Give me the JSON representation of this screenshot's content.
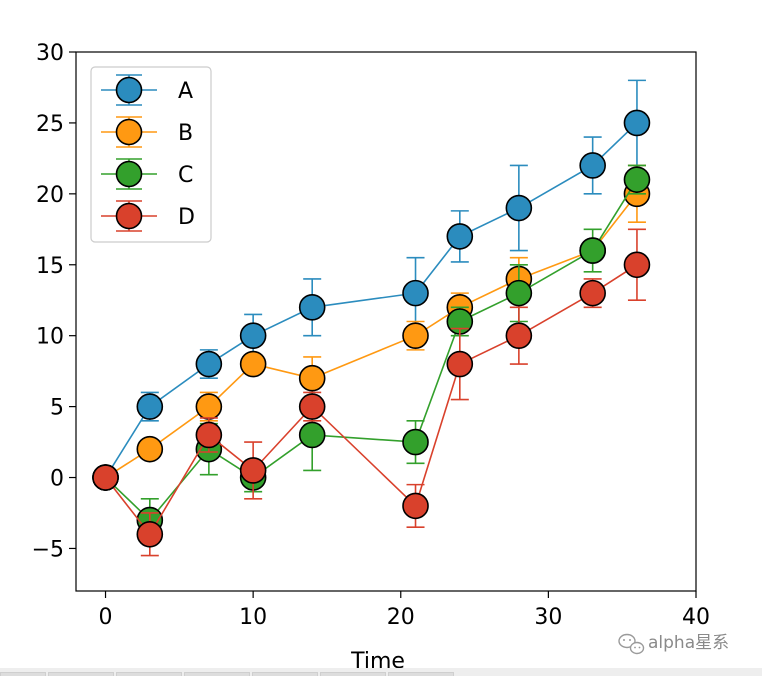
{
  "chart_data": {
    "type": "line",
    "x_label": "Time",
    "xlim": [
      -2,
      40
    ],
    "ylim": [
      -8,
      30
    ],
    "x_ticks": [
      0,
      10,
      20,
      30,
      40
    ],
    "y_ticks": [
      -5,
      0,
      5,
      10,
      15,
      20,
      25,
      30
    ],
    "y_tick_labels": [
      "−5",
      "0",
      "5",
      "10",
      "15",
      "20",
      "25",
      "30"
    ],
    "grid": false,
    "legend_position": "top-left",
    "x": [
      0,
      3,
      7,
      10,
      14,
      21,
      24,
      28,
      33,
      36
    ],
    "series": [
      {
        "name": "A",
        "color": "#2b8cbe",
        "values": [
          0,
          5,
          8,
          10,
          12,
          13,
          17,
          19,
          22,
          25
        ],
        "errors": [
          0.5,
          1,
          1,
          1.5,
          2,
          2.5,
          1.8,
          3,
          2,
          3
        ]
      },
      {
        "name": "B",
        "color": "#ff9912",
        "values": [
          0,
          2,
          5,
          8,
          7,
          10,
          12,
          14,
          16,
          20
        ],
        "errors": [
          0,
          0.5,
          1,
          0.5,
          1.5,
          1,
          1,
          1.5,
          0.5,
          2
        ]
      },
      {
        "name": "C",
        "color": "#33a02c",
        "values": [
          0,
          -3,
          2,
          0,
          3,
          2.5,
          11,
          13,
          16,
          21
        ],
        "errors": [
          0,
          1.5,
          1.8,
          1,
          2.5,
          1.5,
          1,
          2,
          1.5,
          1
        ]
      },
      {
        "name": "D",
        "color": "#d9412c",
        "values": [
          0,
          -4,
          3,
          0.5,
          5,
          -2,
          8,
          10,
          13,
          15
        ],
        "errors": [
          0,
          1.5,
          1.2,
          2,
          1,
          1.5,
          2.5,
          2,
          1,
          2.5
        ]
      }
    ]
  },
  "watermark": "alpha星系"
}
